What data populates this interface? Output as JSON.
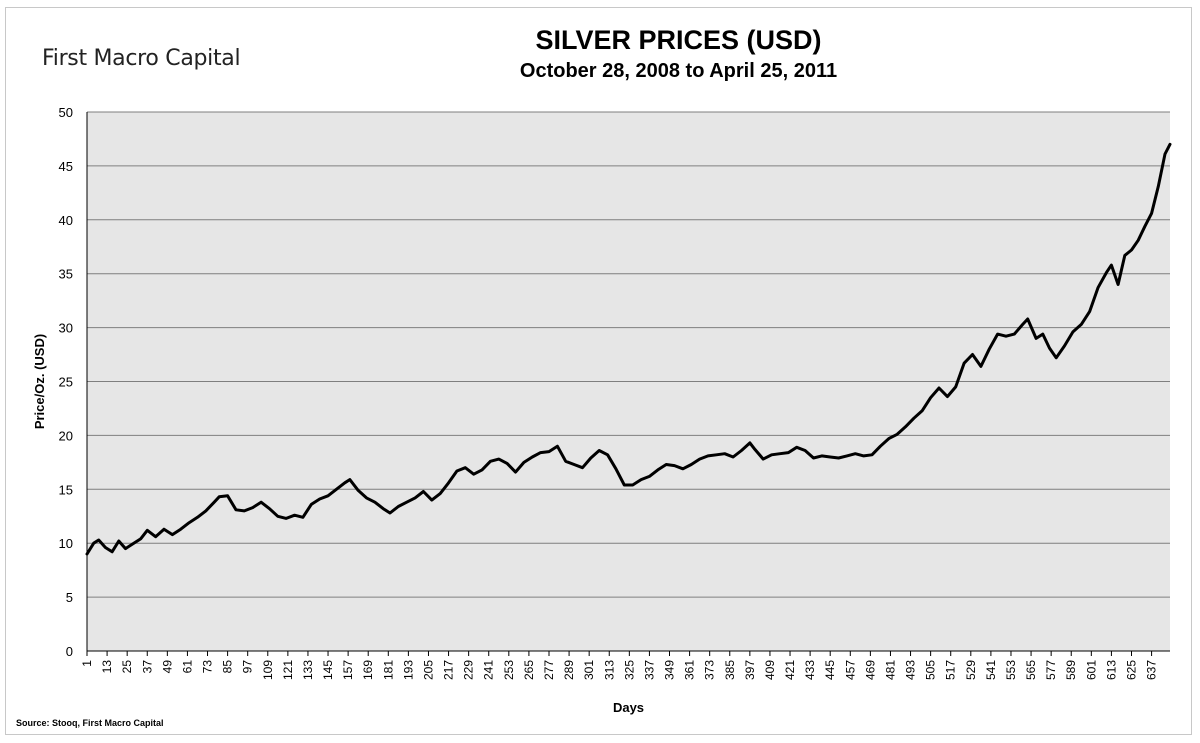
{
  "header": {
    "brand": "First Macro Capital",
    "title": "SILVER PRICES (USD)",
    "subtitle": "October 28, 2008 to April 25, 2011"
  },
  "footer": {
    "source": "Source: Stooq, First Macro Capital"
  },
  "colors": {
    "plot_background": "#e6e6e6",
    "gridline": "#7f7f7f",
    "line": "#000000"
  },
  "chart_data": {
    "type": "line",
    "title": "SILVER PRICES (USD)",
    "subtitle": "October 28, 2008 to April 25, 2011",
    "xlabel": "Days",
    "ylabel": "Price/Oz. (USD)",
    "xlim": [
      1,
      648
    ],
    "ylim": [
      0,
      50
    ],
    "yticks": [
      0,
      5,
      10,
      15,
      20,
      25,
      30,
      35,
      40,
      45,
      50
    ],
    "xticks": [
      1,
      13,
      25,
      37,
      49,
      61,
      73,
      85,
      97,
      109,
      121,
      133,
      145,
      157,
      169,
      181,
      193,
      205,
      217,
      229,
      241,
      253,
      265,
      277,
      289,
      301,
      313,
      325,
      337,
      349,
      361,
      373,
      385,
      397,
      409,
      421,
      433,
      445,
      457,
      469,
      481,
      493,
      505,
      517,
      529,
      541,
      553,
      565,
      577,
      589,
      601,
      613,
      625,
      637
    ],
    "grid": "horizontal",
    "legend": "none",
    "series": [
      {
        "x": [
          1,
          5,
          8,
          12,
          16,
          20,
          24,
          28,
          33,
          37,
          42,
          47,
          52,
          57,
          62,
          67,
          72,
          77,
          80,
          85,
          90,
          95,
          100,
          105,
          110,
          115,
          120,
          125,
          130,
          135,
          140,
          145,
          150,
          155,
          158,
          163,
          168,
          173,
          178,
          182,
          187,
          192,
          197,
          202,
          207,
          212,
          217,
          222,
          227,
          232,
          237,
          242,
          247,
          252,
          257,
          262,
          267,
          272,
          277,
          282,
          287,
          292,
          297,
          302,
          307,
          312,
          317,
          322,
          327,
          332,
          337,
          342,
          347,
          352,
          357,
          362,
          367,
          372,
          377,
          382,
          387,
          392,
          397,
          400,
          405,
          410,
          415,
          420,
          425,
          430,
          435,
          440,
          445,
          450,
          455,
          460,
          465,
          470,
          475,
          480,
          485,
          490,
          495,
          500,
          505,
          510,
          515,
          520,
          525,
          530,
          535,
          540,
          545,
          550,
          555,
          560,
          563,
          568,
          572,
          576,
          580,
          585,
          590,
          595,
          600,
          605,
          610,
          613,
          617,
          621,
          625,
          629,
          633,
          637,
          641,
          645,
          648
        ],
        "values": [
          9.0,
          10.0,
          10.3,
          9.6,
          9.2,
          10.2,
          9.5,
          9.9,
          10.4,
          11.2,
          10.6,
          11.3,
          10.8,
          11.3,
          11.9,
          12.4,
          13.0,
          13.8,
          14.3,
          14.4,
          13.1,
          13.0,
          13.3,
          13.8,
          13.2,
          12.5,
          12.3,
          12.6,
          12.4,
          13.6,
          14.1,
          14.4,
          15.0,
          15.6,
          15.9,
          14.9,
          14.2,
          13.8,
          13.2,
          12.8,
          13.4,
          13.8,
          14.2,
          14.8,
          14.0,
          14.6,
          15.6,
          16.7,
          17.0,
          16.4,
          16.8,
          17.6,
          17.8,
          17.4,
          16.6,
          17.5,
          18.0,
          18.4,
          18.5,
          19.0,
          17.6,
          17.3,
          17.0,
          17.9,
          18.6,
          18.2,
          16.9,
          15.4,
          15.4,
          15.9,
          16.2,
          16.8,
          17.3,
          17.2,
          16.9,
          17.3,
          17.8,
          18.1,
          18.2,
          18.3,
          18.0,
          18.6,
          19.3,
          18.7,
          17.8,
          18.2,
          18.3,
          18.4,
          18.9,
          18.6,
          17.9,
          18.1,
          18.0,
          17.9,
          18.1,
          18.3,
          18.1,
          18.2,
          19.0,
          19.7,
          20.1,
          20.8,
          21.6,
          22.3,
          23.5,
          24.4,
          23.6,
          24.5,
          26.7,
          27.5,
          26.4,
          28.0,
          29.4,
          29.2,
          29.4,
          30.3,
          30.8,
          29.0,
          29.4,
          28.1,
          27.2,
          28.3,
          29.6,
          30.3,
          31.5,
          33.7,
          35.1,
          35.8,
          34.0,
          36.7,
          37.2,
          38.1,
          39.4,
          40.6,
          43.1,
          46.1,
          47.0
        ]
      }
    ]
  }
}
